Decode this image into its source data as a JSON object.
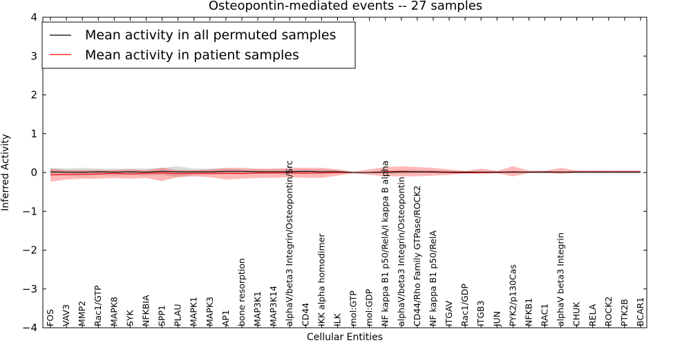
{
  "chart_data": {
    "type": "line",
    "title": "Osteopontin-mediated events -- 27 samples",
    "xlabel": "Cellular Entities",
    "ylabel": "Inferred Activity",
    "ylim": [
      -4,
      4
    ],
    "yticks": [
      "−4",
      "−3",
      "−2",
      "−1",
      "0",
      "1",
      "2",
      "3",
      "4"
    ],
    "legend": {
      "position": "top-left",
      "entries": [
        {
          "label": "Mean activity in all permuted samples",
          "color": "#000000"
        },
        {
          "label": "Mean activity in patient samples",
          "color": "#ff0000"
        }
      ]
    },
    "categories": [
      "FOS",
      "VAV3",
      "MMP2",
      "Rac1/GTP",
      "MAPK8",
      "SYK",
      "NFKBIA",
      "SPP1",
      "PLAU",
      "MAPK1",
      "MAPK3",
      "AP1",
      "bone resorption",
      "MAP3K1",
      "MAP3K14",
      "alphaV/beta3 Integrin/Osteopontin/Src",
      "CD44",
      "IKK alpha homodimer",
      "ILK",
      "mol:GTP",
      "mol:GDP",
      "NF kappa B1 p50/RelA/I kappa B alpha",
      "alphaV/beta3 Integrin/Osteopontin",
      "CD44/Rho Family GTPase/ROCK2",
      "NF kappa B1 p50/RelA",
      "ITGAV",
      "Rac1/GDP",
      "ITGB3",
      "JUN",
      "PYK2/p130Cas",
      "NFKB1",
      "RAC1",
      "alphaV beta3 Integrin",
      "CHUK",
      "RELA",
      "ROCK2",
      "PTK2B",
      "BCAR1"
    ],
    "series": [
      {
        "name": "Mean activity in all permuted samples",
        "color": "#000000",
        "values": [
          0.02,
          0.01,
          0.01,
          0.02,
          0.01,
          0.02,
          0.01,
          0.03,
          0.02,
          0.02,
          0.02,
          0.03,
          0.03,
          0.02,
          0.02,
          0.02,
          0.03,
          0.02,
          0.02,
          0.0,
          0.0,
          0.01,
          0.02,
          0.02,
          0.02,
          0.01,
          0.01,
          0.01,
          0.01,
          0.01,
          0.01,
          0.01,
          0.01,
          0.01,
          0.01,
          0.01,
          0.01,
          0.01
        ],
        "band_upper": [
          0.12,
          0.1,
          0.12,
          0.1,
          0.1,
          0.1,
          0.1,
          0.12,
          0.16,
          0.1,
          0.1,
          0.1,
          0.08,
          0.08,
          0.08,
          0.08,
          0.08,
          0.08,
          0.06,
          0.02,
          0.02,
          0.05,
          0.06,
          0.06,
          0.05,
          0.04,
          0.03,
          0.03,
          0.03,
          0.03,
          0.03,
          0.03,
          0.03,
          0.03,
          0.03,
          0.03,
          0.03,
          0.03
        ],
        "band_lower": [
          -0.08,
          -0.08,
          -0.1,
          -0.06,
          -0.08,
          -0.06,
          -0.08,
          -0.06,
          -0.12,
          -0.06,
          -0.06,
          -0.04,
          -0.02,
          -0.04,
          -0.04,
          -0.04,
          -0.02,
          -0.04,
          -0.02,
          -0.02,
          -0.02,
          -0.03,
          -0.02,
          -0.02,
          -0.01,
          -0.02,
          -0.01,
          -0.01,
          -0.01,
          -0.01,
          -0.01,
          -0.01,
          -0.01,
          -0.01,
          -0.01,
          -0.01,
          -0.01,
          -0.01
        ]
      },
      {
        "name": "Mean activity in patient samples",
        "color": "#ff0000",
        "values": [
          -0.06,
          -0.05,
          -0.04,
          -0.04,
          -0.02,
          -0.04,
          -0.02,
          -0.01,
          -0.03,
          -0.02,
          -0.02,
          -0.02,
          -0.03,
          -0.01,
          -0.01,
          -0.01,
          -0.02,
          -0.01,
          0.0,
          0.0,
          0.0,
          0.02,
          0.03,
          0.02,
          0.01,
          0.0,
          -0.01,
          0.0,
          0.0,
          0.02,
          0.01,
          0.02,
          0.01,
          0.02,
          0.02,
          0.02,
          0.02,
          0.02
        ],
        "band_upper": [
          0.1,
          0.06,
          0.06,
          0.06,
          0.06,
          0.08,
          0.06,
          0.12,
          0.06,
          0.06,
          0.08,
          0.12,
          0.12,
          0.1,
          0.1,
          0.12,
          0.12,
          0.12,
          0.08,
          0.02,
          0.08,
          0.14,
          0.16,
          0.14,
          0.12,
          0.08,
          0.04,
          0.1,
          0.04,
          0.16,
          0.05,
          0.04,
          0.12,
          0.05,
          0.05,
          0.05,
          0.05,
          0.05
        ],
        "band_lower": [
          -0.24,
          -0.18,
          -0.16,
          -0.16,
          -0.14,
          -0.16,
          -0.14,
          -0.22,
          -0.12,
          -0.1,
          -0.12,
          -0.18,
          -0.16,
          -0.14,
          -0.14,
          -0.12,
          -0.14,
          -0.14,
          -0.08,
          -0.02,
          -0.06,
          -0.1,
          -0.1,
          -0.1,
          -0.08,
          -0.06,
          -0.02,
          -0.04,
          -0.02,
          -0.1,
          -0.02,
          -0.01,
          -0.04,
          -0.01,
          -0.01,
          -0.01,
          -0.01,
          -0.01
        ]
      }
    ],
    "reference_line": {
      "style": "dotted",
      "color": "#555555",
      "value": 0
    }
  }
}
